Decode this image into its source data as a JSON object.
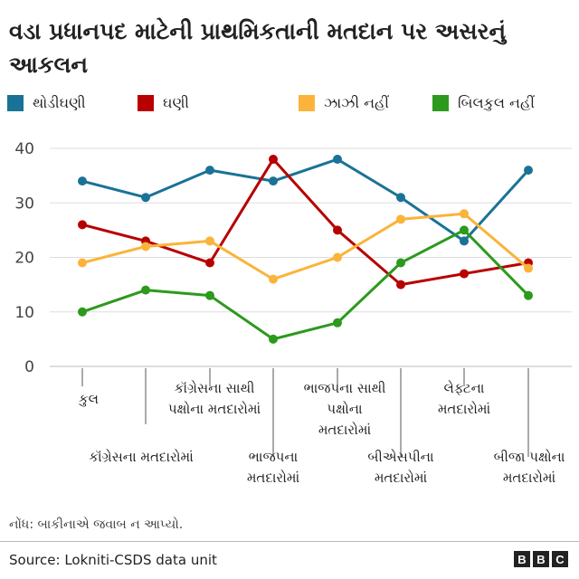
{
  "title": "વડા પ્રધાનપદ માટેની પ્રાથમિકતાની મતદાન પર અસરનું આકલન",
  "note": "નોંધ: બાકીનાએ જવાબ ન આપ્યો.",
  "source": "Source: Lokniti-CSDS data unit",
  "logo": [
    "B",
    "B",
    "C"
  ],
  "colors": {
    "series": [
      "#1a7297",
      "#b80000",
      "#fbb33a",
      "#2c9a1c"
    ],
    "grid": "#dddddd",
    "axis": "#555555"
  },
  "chart_data": {
    "type": "line",
    "title": "વડા પ્રધાનપદ માટેની પ્રાથમિકતાની મતદાન પર અસરનું આકલન",
    "categories": [
      "કુલ",
      "કૉંગ્રેસના મતદારોમાં",
      "કૉંગ્રેસના સાથી પક્ષોના મતદારોમાં",
      "ભાજપના મતદારોમાં",
      "ભાજપના સાથી પક્ષોના મતદારોમાં",
      "બીએસપીના મતદારોમાં",
      "લેફ્ટના મતદારોમાં",
      "બીજા પક્ષોના મતદારોમાં"
    ],
    "category_lines": [
      "કુલ",
      "કૉંગ્રેસના મતદારોમાં",
      "કૉંગ્રેસના સાથી\nપક્ષોના મતદારોમાં",
      "ભાજપના\nમતદારોમાં",
      "ભાજપના સાથી\nપક્ષોના\nમતદારોમાં",
      "બીએસપીના\nમતદારોમાં",
      "લેફ્ટના\nમતદારોમાં",
      "બીજા પક્ષોના\nમતદારોમાં"
    ],
    "series": [
      {
        "name": "થોડીઘણી",
        "values": [
          34,
          31,
          36,
          34,
          38,
          31,
          23,
          36
        ]
      },
      {
        "name": "ઘણી",
        "values": [
          26,
          23,
          19,
          38,
          25,
          15,
          17,
          19
        ]
      },
      {
        "name": "ઝાઝી નહીં",
        "values": [
          19,
          22,
          23,
          16,
          20,
          27,
          28,
          18
        ]
      },
      {
        "name": "બિલકુલ નહીં",
        "values": [
          10,
          14,
          13,
          5,
          8,
          19,
          25,
          13
        ]
      }
    ],
    "ylim": [
      0,
      40
    ],
    "yticks": [
      0,
      10,
      20,
      30,
      40
    ],
    "grid": true,
    "legend": "top"
  }
}
